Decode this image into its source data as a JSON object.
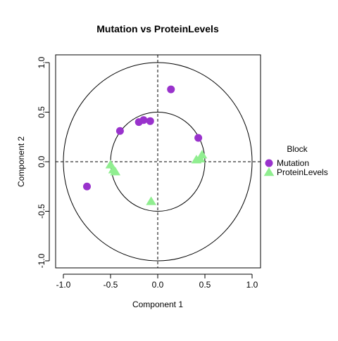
{
  "chart_data": {
    "type": "scatter",
    "title": "Mutation vs ProteinLevels",
    "xlabel": "Component 1",
    "ylabel": "Component 2",
    "xlim": [
      -1.0,
      1.0
    ],
    "ylim": [
      -1.0,
      1.0
    ],
    "x_ticks": [
      "-1.0",
      "-0.5",
      "0.0",
      "0.5",
      "1.0"
    ],
    "y_ticks": [
      "-1.0",
      "-0.5",
      "0.0",
      "0.5",
      "1.0"
    ],
    "tick_values": [
      -1.0,
      -0.5,
      0.0,
      0.5,
      1.0
    ],
    "circles_radius": [
      1.0,
      0.5
    ],
    "reference_lines": [
      0,
      0
    ],
    "legend": {
      "title": "Block",
      "placement": "right"
    },
    "series": [
      {
        "name": "Mutation",
        "color": "#9932CC",
        "marker": "circle",
        "points": [
          {
            "x": 0.14,
            "y": 0.73
          },
          {
            "x": -0.4,
            "y": 0.31
          },
          {
            "x": -0.2,
            "y": 0.4
          },
          {
            "x": -0.15,
            "y": 0.42
          },
          {
            "x": -0.08,
            "y": 0.41
          },
          {
            "x": 0.43,
            "y": 0.24
          },
          {
            "x": -0.75,
            "y": -0.25
          }
        ]
      },
      {
        "name": "ProteinLevels",
        "color": "#90EE90",
        "marker": "triangle",
        "points": [
          {
            "x": -0.5,
            "y": -0.03
          },
          {
            "x": -0.47,
            "y": -0.08
          },
          {
            "x": -0.45,
            "y": -0.1
          },
          {
            "x": -0.07,
            "y": -0.4
          },
          {
            "x": 0.41,
            "y": 0.02
          },
          {
            "x": 0.45,
            "y": 0.03
          },
          {
            "x": 0.47,
            "y": 0.07
          }
        ]
      }
    ]
  }
}
